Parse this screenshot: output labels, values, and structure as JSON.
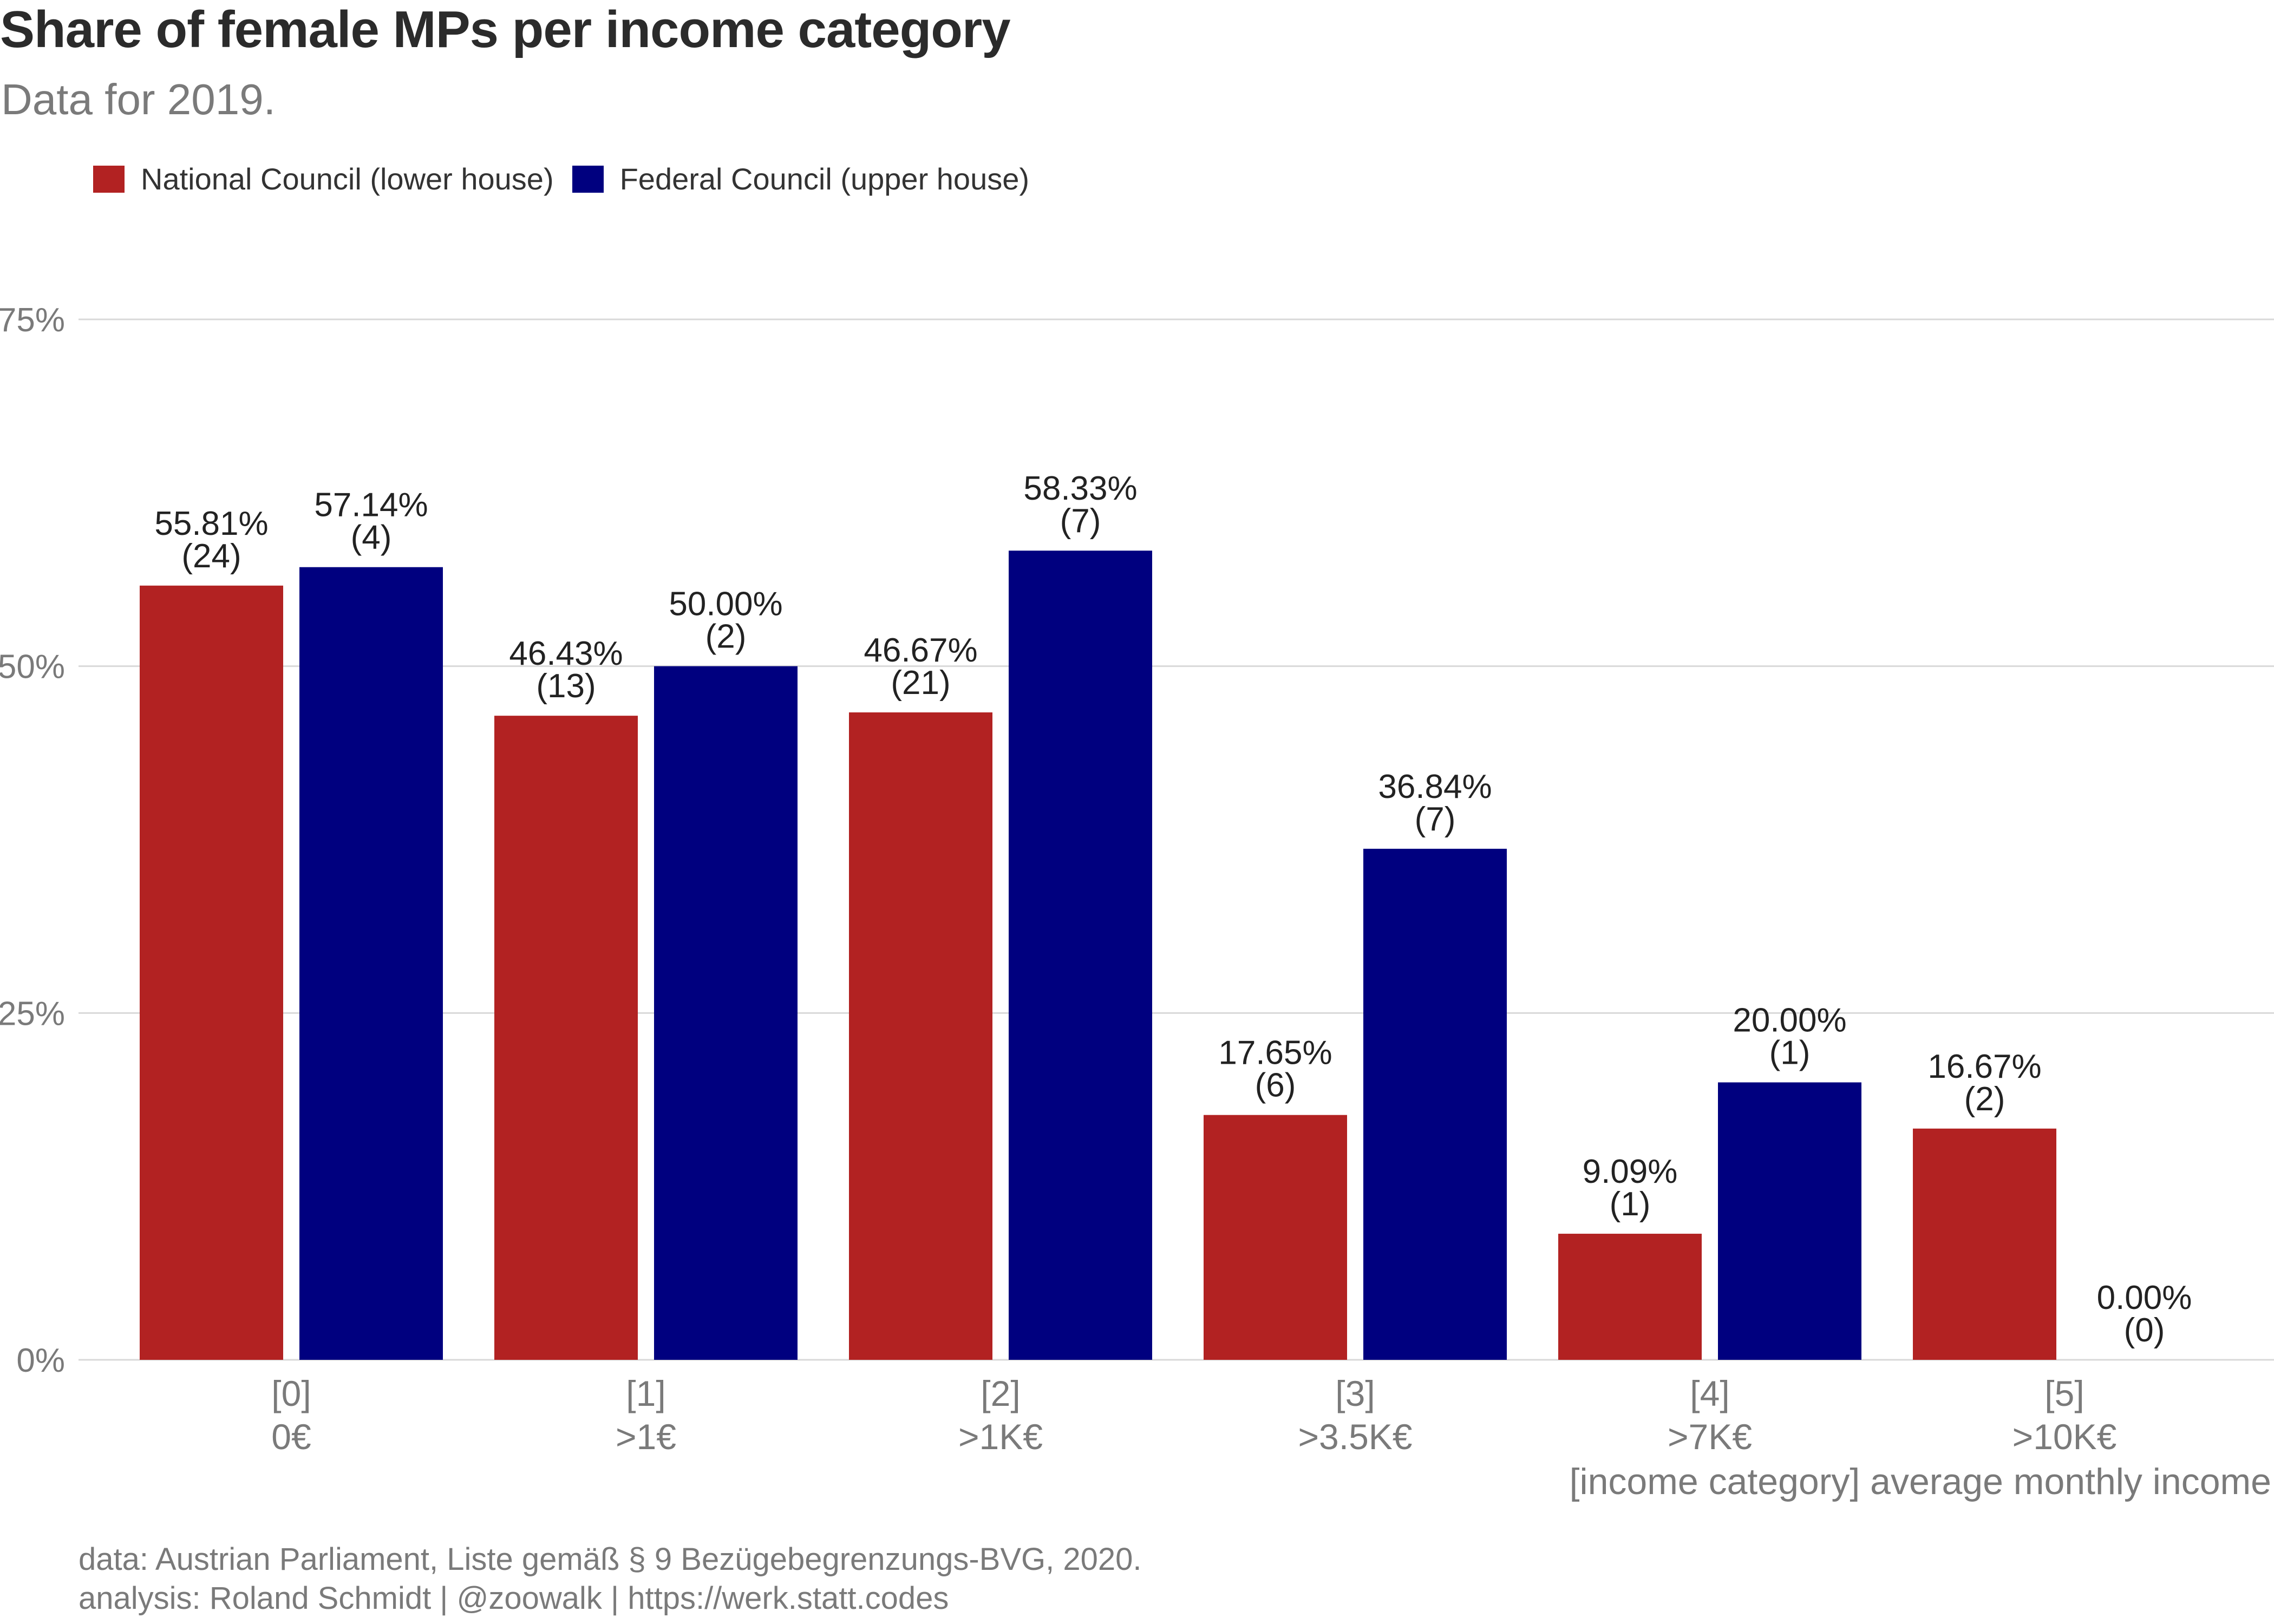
{
  "title": "Share of female MPs per income category",
  "subtitle": "Data for 2019.",
  "colors": {
    "national": "#b22222",
    "federal": "#00007f",
    "grid": "#d9d9d9",
    "axis_text": "#7a7a7a"
  },
  "legend": [
    {
      "label": "National Council (lower house)",
      "color": "#b22222"
    },
    {
      "label": "Federal Council (upper house)",
      "color": "#00007f"
    }
  ],
  "chart_data": {
    "type": "bar",
    "legend_position": "top-left",
    "grid": true,
    "ylim": [
      0,
      75
    ],
    "yticks": [
      "0%",
      "25%",
      "50%",
      "75%"
    ],
    "ytick_values": [
      0,
      25,
      50,
      75
    ],
    "xlabel": "[income category] average monthly income",
    "categories": [
      {
        "code": "[0]",
        "label": "0€"
      },
      {
        "code": "[1]",
        "label": ">1€"
      },
      {
        "code": "[2]",
        "label": ">1K€"
      },
      {
        "code": "[3]",
        "label": ">3.5K€"
      },
      {
        "code": "[4]",
        "label": ">7K€"
      },
      {
        "code": "[5]",
        "label": ">10K€"
      }
    ],
    "series": [
      {
        "name": "National Council (lower house)",
        "color": "#b22222",
        "values": [
          55.81,
          46.43,
          46.67,
          17.65,
          9.09,
          16.67
        ],
        "pct_labels": [
          "55.81%",
          "46.43%",
          "46.67%",
          "17.65%",
          "9.09%",
          "16.67%"
        ],
        "count_labels": [
          "(24)",
          "(13)",
          "(21)",
          "(6)",
          "(1)",
          "(2)"
        ]
      },
      {
        "name": "Federal Council (upper house)",
        "color": "#00007f",
        "values": [
          57.14,
          50.0,
          58.33,
          36.84,
          20.0,
          0.0
        ],
        "pct_labels": [
          "57.14%",
          "50.00%",
          "58.33%",
          "36.84%",
          "20.00%",
          "0.00%"
        ],
        "count_labels": [
          "(4)",
          "(2)",
          "(7)",
          "(7)",
          "(1)",
          "(0)"
        ]
      }
    ]
  },
  "caption": {
    "line1": "data: Austrian Parliament, Liste gemäß § 9 Bezügebegrenzungs-BVG, 2020.",
    "line2": "analysis: Roland Schmidt | @zoowalk | https://werk.statt.codes"
  }
}
